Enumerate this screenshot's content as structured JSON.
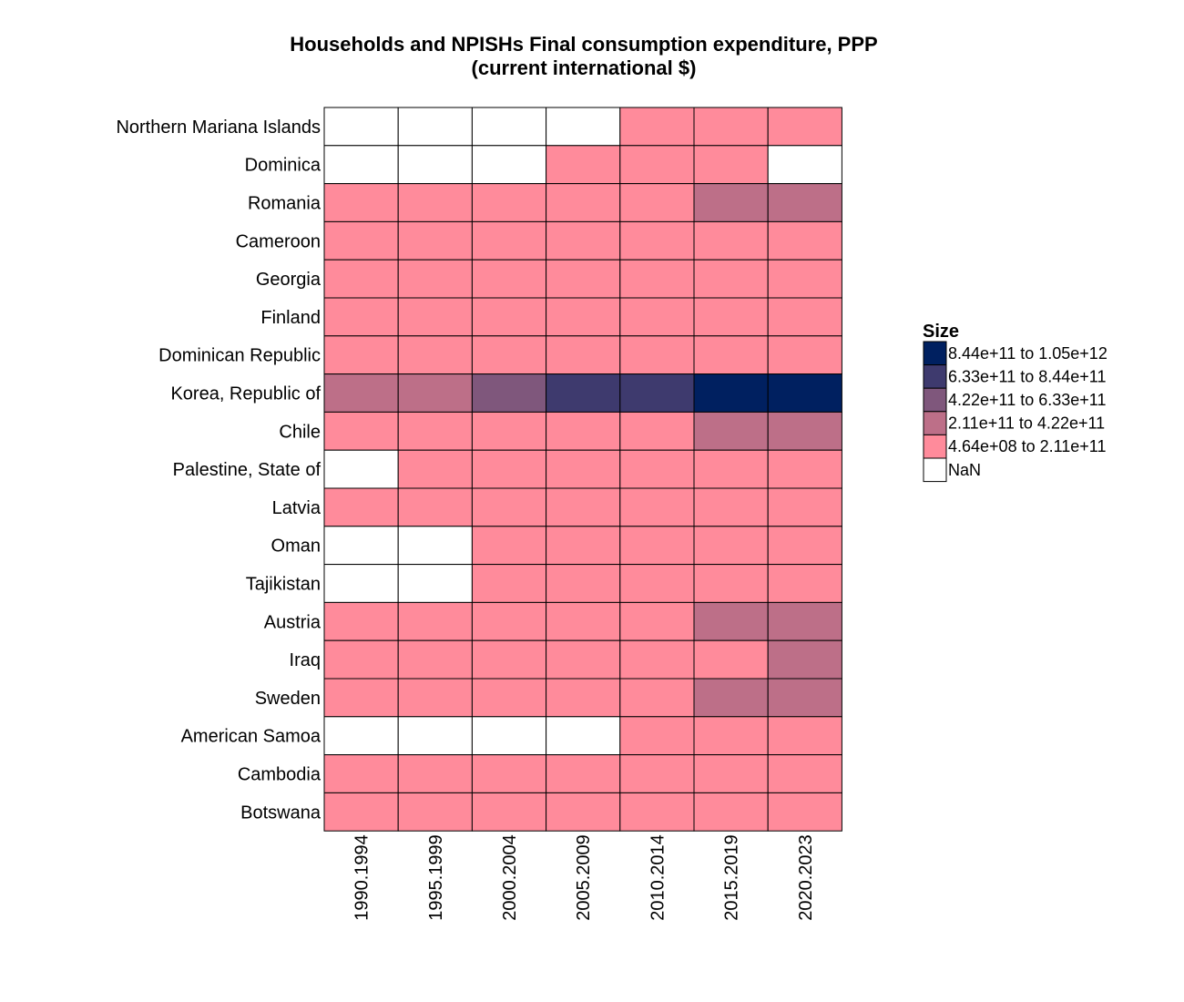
{
  "chart_data": {
    "type": "heatmap",
    "title": "Households and NPISHs Final consumption expenditure, PPP",
    "subtitle": "(current international $)",
    "x": [
      "1990.1994",
      "1995.1999",
      "2000.2004",
      "2005.2009",
      "2010.2014",
      "2015.2019",
      "2020.2023"
    ],
    "y": [
      "Northern Mariana Islands",
      "Dominica",
      "Romania",
      "Cameroon",
      "Georgia",
      "Finland",
      "Dominican Republic",
      "Korea, Republic of",
      "Chile",
      "Palestine, State of",
      "Latvia",
      "Oman",
      "Tajikistan",
      "Austria",
      "Iraq",
      "Sweden",
      "American Samoa",
      "Cambodia",
      "Botswana"
    ],
    "legend": {
      "title": "Size",
      "position": "right",
      "bins": [
        {
          "label": "8.44e+11 to 1.05e+12",
          "color": "#002060"
        },
        {
          "label": "6.33e+11 to 8.44e+11",
          "color": "#3e3a6e"
        },
        {
          "label": "4.22e+11 to 6.33e+11",
          "color": "#7f577c"
        },
        {
          "label": "2.11e+11 to 4.22e+11",
          "color": "#bd6f88"
        },
        {
          "label": "4.64e+08 to 2.11e+11",
          "color": "#ff8b9b"
        },
        {
          "label": "NaN",
          "color": "#ffffff"
        }
      ]
    },
    "values": [
      [
        null,
        null,
        null,
        null,
        0,
        0,
        0
      ],
      [
        null,
        null,
        null,
        0,
        0,
        0,
        null
      ],
      [
        0,
        0,
        0,
        0,
        0,
        1,
        1
      ],
      [
        0,
        0,
        0,
        0,
        0,
        0,
        0
      ],
      [
        0,
        0,
        0,
        0,
        0,
        0,
        0
      ],
      [
        0,
        0,
        0,
        0,
        0,
        0,
        0
      ],
      [
        0,
        0,
        0,
        0,
        0,
        0,
        0
      ],
      [
        1,
        1,
        2,
        3,
        3,
        4,
        4
      ],
      [
        0,
        0,
        0,
        0,
        0,
        1,
        1
      ],
      [
        null,
        0,
        0,
        0,
        0,
        0,
        0
      ],
      [
        0,
        0,
        0,
        0,
        0,
        0,
        0
      ],
      [
        null,
        null,
        0,
        0,
        0,
        0,
        0
      ],
      [
        null,
        null,
        0,
        0,
        0,
        0,
        0
      ],
      [
        0,
        0,
        0,
        0,
        0,
        1,
        1
      ],
      [
        0,
        0,
        0,
        0,
        0,
        0,
        1
      ],
      [
        0,
        0,
        0,
        0,
        0,
        1,
        1
      ],
      [
        null,
        null,
        null,
        null,
        0,
        0,
        0
      ],
      [
        0,
        0,
        0,
        0,
        0,
        0,
        0
      ],
      [
        0,
        0,
        0,
        0,
        0,
        0,
        0
      ]
    ],
    "values_note_scale": [
      "4.64e+08 to 2.11e+11",
      "2.11e+11 to 4.22e+11",
      "4.22e+11 to 6.33e+11",
      "6.33e+11 to 8.44e+11",
      "8.44e+11 to 1.05e+12"
    ]
  }
}
